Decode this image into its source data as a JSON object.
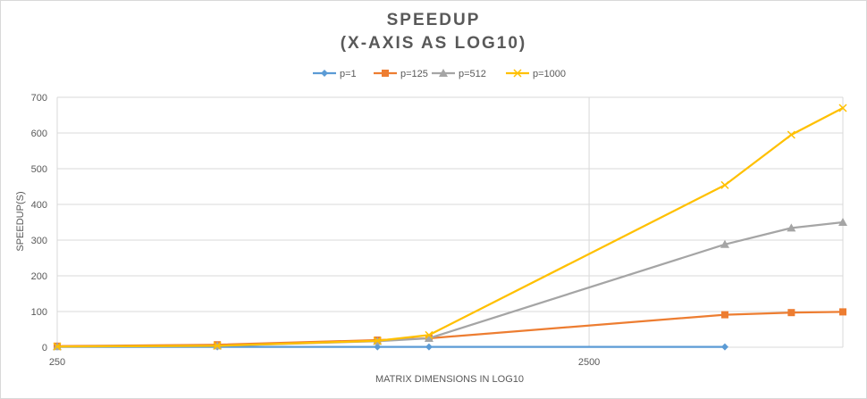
{
  "chart_data": {
    "type": "line",
    "title": "SPEEDUP",
    "subtitle": "(X-AXIS AS LOG10)",
    "xlabel": "MATRIX DIMENSIONS IN LOG10",
    "ylabel": "SPEEDUP(S)",
    "x_scale": "log10",
    "xlim": [
      250,
      7500
    ],
    "ylim": [
      0,
      700
    ],
    "x_ticks": [
      "250",
      "2500"
    ],
    "y_ticks": [
      "0",
      "100",
      "200",
      "300",
      "400",
      "500",
      "600",
      "700"
    ],
    "grid": true,
    "legend_position": "top",
    "series": [
      {
        "name": "p=1",
        "color": "#5b9bd5",
        "marker": "diamond",
        "x": [
          250,
          500,
          1000,
          1250,
          4500
        ],
        "y": [
          1,
          1,
          1,
          1,
          1
        ]
      },
      {
        "name": "p=125",
        "color": "#ed7d31",
        "marker": "square",
        "x": [
          250,
          500,
          1000,
          1250,
          4500,
          6000,
          7500
        ],
        "y": [
          3,
          7,
          20,
          25,
          91,
          97,
          99
        ]
      },
      {
        "name": "p=512",
        "color": "#a5a5a5",
        "marker": "triangle",
        "x": [
          250,
          500,
          1000,
          1250,
          4500,
          6000,
          7500
        ],
        "y": [
          2,
          4,
          17,
          25,
          288,
          334,
          350
        ]
      },
      {
        "name": "p=1000",
        "color": "#ffc000",
        "marker": "x",
        "x": [
          250,
          500,
          1000,
          1250,
          4500,
          6000,
          7500
        ],
        "y": [
          2,
          4,
          18,
          34,
          454,
          595,
          670
        ]
      }
    ]
  }
}
